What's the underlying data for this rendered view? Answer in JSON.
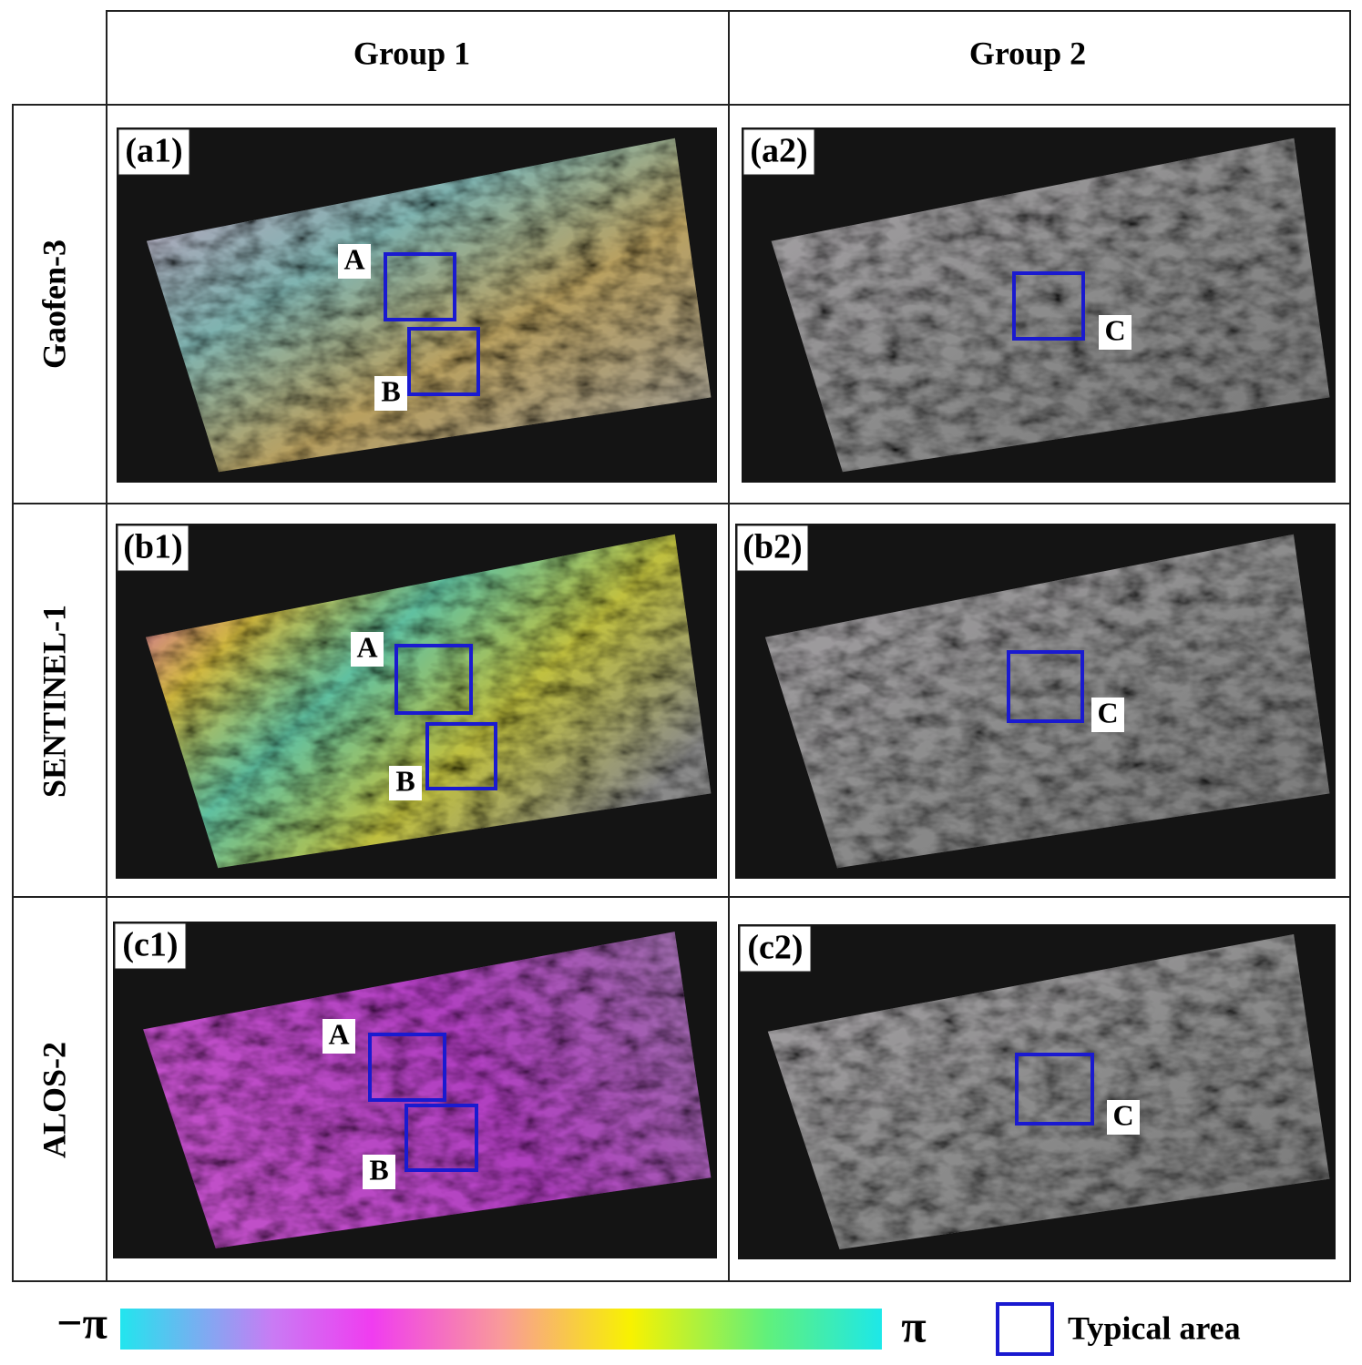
{
  "columns": [
    "Group 1",
    "Group 2"
  ],
  "rows": [
    "Gaofen-3",
    "SENTINEL-1",
    "ALOS-2"
  ],
  "panels": [
    {
      "label": "(a1)",
      "boxes": [
        "A",
        "B"
      ]
    },
    {
      "label": "(a2)",
      "boxes": [
        "C"
      ]
    },
    {
      "label": "(b1)",
      "boxes": [
        "A",
        "B"
      ]
    },
    {
      "label": "(b2)",
      "boxes": [
        "C"
      ]
    },
    {
      "label": "(c1)",
      "boxes": [
        "A",
        "B"
      ]
    },
    {
      "label": "(c2)",
      "boxes": [
        "C"
      ]
    }
  ],
  "colorbar": {
    "min_label": "−π",
    "max_label": "π"
  },
  "legend": {
    "label": "Typical area"
  }
}
